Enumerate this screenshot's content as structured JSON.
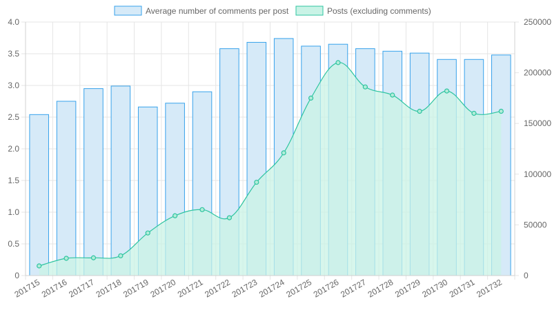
{
  "chart_data": {
    "type": "bar",
    "categories": [
      "201715",
      "201716",
      "201717",
      "201718",
      "201719",
      "201720",
      "201721",
      "201722",
      "201723",
      "201724",
      "201725",
      "201726",
      "201727",
      "201728",
      "201729",
      "201730",
      "201731",
      "201732"
    ],
    "series": [
      {
        "name": "Average number of comments per post",
        "type": "bar",
        "axis": "left",
        "color": "#36a2eb",
        "fill": "#d6eaf8",
        "values": [
          2.54,
          2.75,
          2.95,
          2.99,
          2.66,
          2.72,
          2.9,
          3.58,
          3.68,
          3.74,
          3.62,
          3.65,
          3.58,
          3.54,
          3.51,
          3.41,
          3.41,
          3.48
        ]
      },
      {
        "name": "Posts (excluding comments)",
        "type": "area",
        "axis": "right",
        "color": "#2ec4a0",
        "fill": "#c9f3e6",
        "values": [
          9500,
          17000,
          17500,
          19500,
          42000,
          59000,
          65000,
          57000,
          92000,
          121000,
          175000,
          210000,
          186000,
          178000,
          162000,
          182000,
          160000,
          162000
        ]
      }
    ],
    "y_left": {
      "min": 0,
      "max": 4,
      "step": 0.5,
      "ticks": [
        "0",
        "0.5",
        "1.0",
        "1.5",
        "2.0",
        "2.5",
        "3.0",
        "3.5",
        "4.0"
      ]
    },
    "y_right": {
      "min": 0,
      "max": 250000,
      "step": 50000,
      "ticks": [
        "0",
        "50000",
        "100000",
        "150000",
        "200000",
        "250000"
      ]
    },
    "grid": true,
    "legend_position": "top-center"
  }
}
